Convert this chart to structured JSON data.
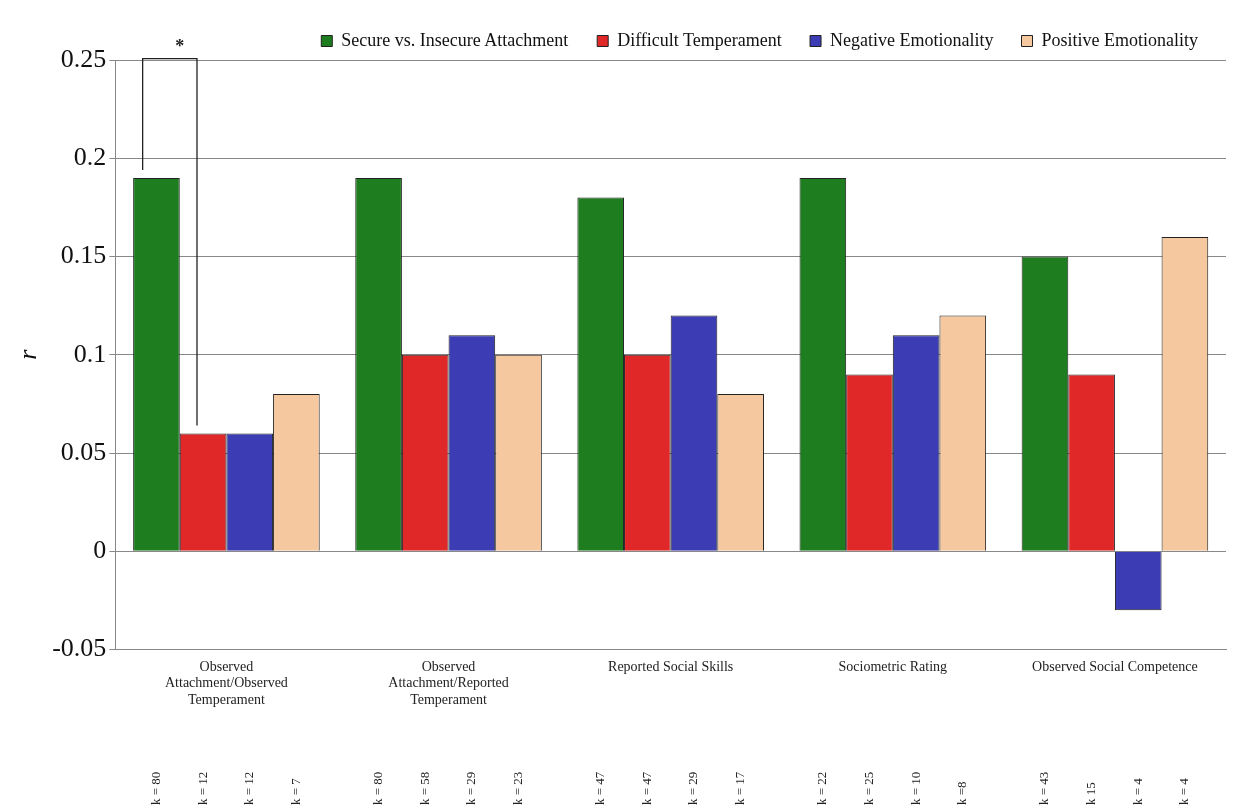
{
  "chart_data": {
    "type": "bar",
    "ylabel": "r",
    "categories": [
      "Observed Attachment/Observed Temperament",
      "Observed Attachment/Reported Temperament",
      "Reported Social Skills",
      "Sociometric Rating",
      "Observed Social Competence"
    ],
    "series": [
      {
        "name": "Secure vs. Insecure Attachment",
        "color": "#1e7d1e",
        "values": [
          0.19,
          0.19,
          0.18,
          0.19,
          0.15
        ]
      },
      {
        "name": "Difficult Temperament",
        "color": "#e02828",
        "values": [
          0.06,
          0.1,
          0.1,
          0.09,
          0.09
        ]
      },
      {
        "name": "Negative Emotionality",
        "color": "#3c3cb4",
        "values": [
          0.06,
          0.11,
          0.12,
          0.11,
          -0.03
        ]
      },
      {
        "name": "Positive Emotionality",
        "color": "#f5c8a0",
        "values": [
          0.08,
          0.1,
          0.08,
          0.12,
          0.16
        ]
      }
    ],
    "ylim": [
      -0.05,
      0.25
    ],
    "yticks": [
      -0.05,
      0,
      0.05,
      0.1,
      0.15,
      0.2,
      0.25
    ],
    "grid": "y",
    "legend": "top",
    "annotations": [
      "*",
      "k = 80",
      "k = 12",
      "k = 12",
      "k = 7",
      "k = 80",
      "k = 58",
      "k = 29",
      "k = 23",
      "k = 47",
      "k = 47",
      "k = 29",
      "k = 17",
      "k = 22",
      "k = 25",
      "k = 10",
      "k =8",
      "k = 43",
      "k 15",
      "k = 4",
      "k = 4"
    ]
  }
}
